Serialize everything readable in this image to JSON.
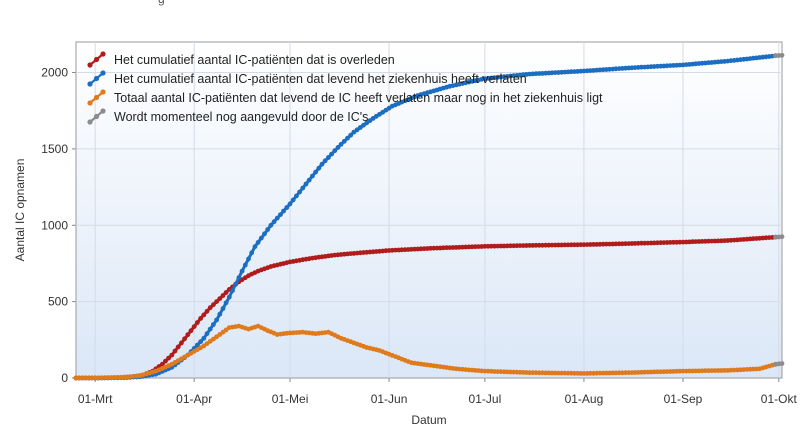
{
  "header_fragment": "g",
  "chart_data": {
    "type": "line",
    "title": "",
    "xlabel": "Datum",
    "ylabel": "Aantal IC opnamen",
    "ylim": [
      0,
      2200
    ],
    "y_ticks": [
      0,
      500,
      1000,
      1500,
      2000
    ],
    "x_range": [
      "2020-02-24",
      "2020-10-02"
    ],
    "x_ticks": [
      {
        "date": "2020-03-01",
        "label": "01-Mrt"
      },
      {
        "date": "2020-04-01",
        "label": "01-Apr"
      },
      {
        "date": "2020-05-01",
        "label": "01-Mei"
      },
      {
        "date": "2020-06-01",
        "label": "01-Jun"
      },
      {
        "date": "2020-07-01",
        "label": "01-Jul"
      },
      {
        "date": "2020-08-01",
        "label": "01-Aug"
      },
      {
        "date": "2020-09-01",
        "label": "01-Sep"
      },
      {
        "date": "2020-10-01",
        "label": "01-Okt"
      }
    ],
    "grid": true,
    "legend_position": "top-left",
    "series": [
      {
        "name": "Het cumulatief aantal IC-patiënten dat is overleden",
        "color": "#b01c1c",
        "points": [
          [
            "2020-02-24",
            0
          ],
          [
            "2020-03-01",
            0
          ],
          [
            "2020-03-08",
            2
          ],
          [
            "2020-03-13",
            8
          ],
          [
            "2020-03-16",
            20
          ],
          [
            "2020-03-19",
            45
          ],
          [
            "2020-03-22",
            90
          ],
          [
            "2020-03-25",
            150
          ],
          [
            "2020-03-28",
            230
          ],
          [
            "2020-03-31",
            310
          ],
          [
            "2020-04-03",
            390
          ],
          [
            "2020-04-06",
            460
          ],
          [
            "2020-04-09",
            520
          ],
          [
            "2020-04-12",
            580
          ],
          [
            "2020-04-15",
            630
          ],
          [
            "2020-04-18",
            670
          ],
          [
            "2020-04-21",
            700
          ],
          [
            "2020-04-25",
            730
          ],
          [
            "2020-05-01",
            760
          ],
          [
            "2020-05-08",
            785
          ],
          [
            "2020-05-15",
            805
          ],
          [
            "2020-05-22",
            818
          ],
          [
            "2020-06-01",
            835
          ],
          [
            "2020-06-15",
            850
          ],
          [
            "2020-07-01",
            862
          ],
          [
            "2020-07-15",
            868
          ],
          [
            "2020-08-01",
            873
          ],
          [
            "2020-08-15",
            880
          ],
          [
            "2020-09-01",
            890
          ],
          [
            "2020-09-15",
            900
          ],
          [
            "2020-09-25",
            915
          ],
          [
            "2020-09-30",
            922
          ]
        ]
      },
      {
        "name": "Het cumulatief aantal IC-patiënten dat levend het ziekenhuis heeft verlaten",
        "color": "#1b6ec2",
        "points": [
          [
            "2020-02-24",
            0
          ],
          [
            "2020-03-01",
            0
          ],
          [
            "2020-03-10",
            2
          ],
          [
            "2020-03-15",
            8
          ],
          [
            "2020-03-20",
            25
          ],
          [
            "2020-03-25",
            70
          ],
          [
            "2020-03-30",
            150
          ],
          [
            "2020-04-04",
            260
          ],
          [
            "2020-04-08",
            380
          ],
          [
            "2020-04-12",
            530
          ],
          [
            "2020-04-16",
            700
          ],
          [
            "2020-04-20",
            860
          ],
          [
            "2020-04-25",
            1000
          ],
          [
            "2020-05-01",
            1140
          ],
          [
            "2020-05-06",
            1270
          ],
          [
            "2020-05-11",
            1400
          ],
          [
            "2020-05-16",
            1510
          ],
          [
            "2020-05-21",
            1610
          ],
          [
            "2020-05-27",
            1700
          ],
          [
            "2020-06-02",
            1780
          ],
          [
            "2020-06-10",
            1850
          ],
          [
            "2020-06-20",
            1910
          ],
          [
            "2020-07-01",
            1960
          ],
          [
            "2020-07-15",
            1990
          ],
          [
            "2020-08-01",
            2010
          ],
          [
            "2020-08-15",
            2030
          ],
          [
            "2020-09-01",
            2050
          ],
          [
            "2020-09-15",
            2075
          ],
          [
            "2020-09-30",
            2110
          ]
        ]
      },
      {
        "name": "Totaal aantal IC-patiënten dat levend de IC heeft verlaten maar nog in het ziekenhuis ligt",
        "color": "#e07b1d",
        "points": [
          [
            "2020-02-24",
            0
          ],
          [
            "2020-03-01",
            0
          ],
          [
            "2020-03-10",
            5
          ],
          [
            "2020-03-15",
            15
          ],
          [
            "2020-03-20",
            45
          ],
          [
            "2020-03-25",
            90
          ],
          [
            "2020-03-30",
            150
          ],
          [
            "2020-04-04",
            210
          ],
          [
            "2020-04-08",
            270
          ],
          [
            "2020-04-12",
            330
          ],
          [
            "2020-04-15",
            340
          ],
          [
            "2020-04-18",
            320
          ],
          [
            "2020-04-21",
            340
          ],
          [
            "2020-04-24",
            310
          ],
          [
            "2020-04-27",
            285
          ],
          [
            "2020-05-01",
            295
          ],
          [
            "2020-05-05",
            300
          ],
          [
            "2020-05-09",
            290
          ],
          [
            "2020-05-13",
            300
          ],
          [
            "2020-05-17",
            260
          ],
          [
            "2020-05-21",
            230
          ],
          [
            "2020-05-25",
            200
          ],
          [
            "2020-05-29",
            180
          ],
          [
            "2020-06-03",
            140
          ],
          [
            "2020-06-08",
            100
          ],
          [
            "2020-06-15",
            80
          ],
          [
            "2020-06-22",
            60
          ],
          [
            "2020-07-01",
            45
          ],
          [
            "2020-07-15",
            35
          ],
          [
            "2020-08-01",
            30
          ],
          [
            "2020-08-15",
            35
          ],
          [
            "2020-09-01",
            45
          ],
          [
            "2020-09-15",
            50
          ],
          [
            "2020-09-25",
            60
          ],
          [
            "2020-09-30",
            90
          ]
        ]
      },
      {
        "name": "Wordt momenteel nog aangevuld door de IC's",
        "color": "#8c8c8c",
        "segments": [
          [
            [
              "2020-09-30",
              922
            ],
            [
              "2020-10-02",
              925
            ]
          ],
          [
            [
              "2020-09-30",
              2110
            ],
            [
              "2020-10-02",
              2113
            ]
          ],
          [
            [
              "2020-09-30",
              90
            ],
            [
              "2020-10-02",
              95
            ]
          ]
        ]
      }
    ]
  }
}
